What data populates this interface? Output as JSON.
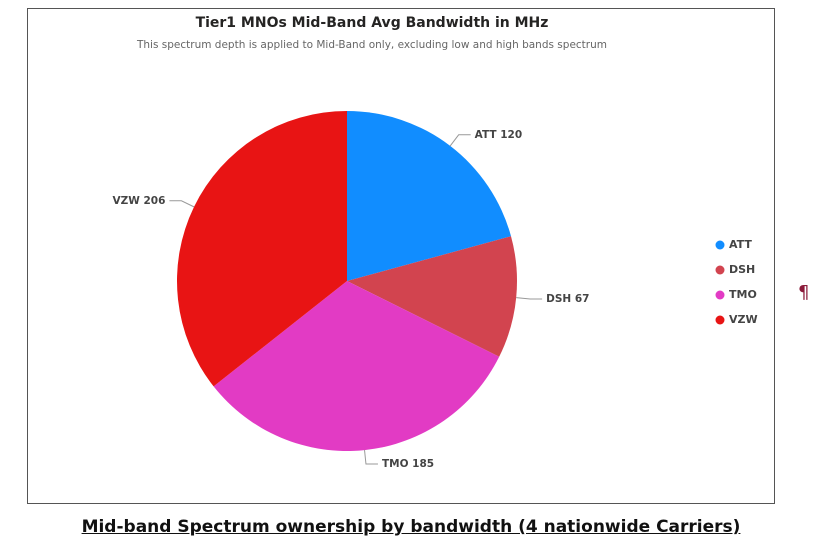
{
  "chart_data": {
    "type": "pie",
    "title": "Tier1 MNOs Mid-Band Avg Bandwidth in MHz",
    "subtitle": "This spectrum depth is applied to Mid-Band only, excluding low and high bands spectrum",
    "categories": [
      "ATT",
      "DSH",
      "TMO",
      "VZW"
    ],
    "values": [
      120,
      67,
      185,
      206
    ],
    "colors": [
      "#118dff",
      "#d2444f",
      "#e23bc4",
      "#e81414"
    ],
    "legend": "right"
  },
  "caption": "Mid-band Spectrum ownership by bandwidth (4 nationwide Carriers)",
  "paragraph_mark": "¶"
}
